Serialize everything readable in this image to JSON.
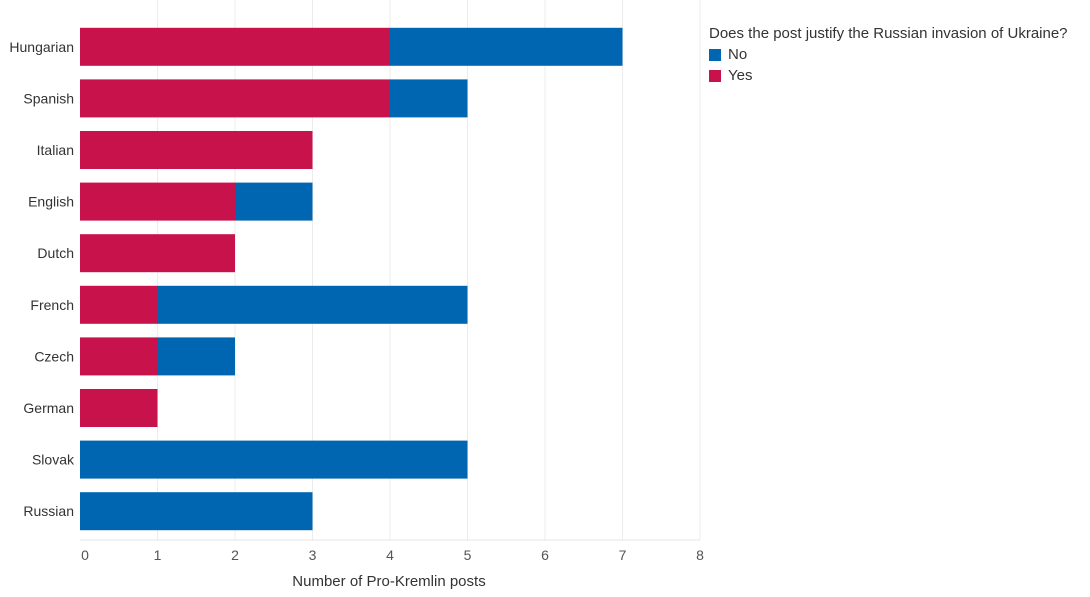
{
  "chart_data": {
    "type": "bar",
    "orientation": "horizontal",
    "stacked": true,
    "categories": [
      "Hungarian",
      "Spanish",
      "Italian",
      "English",
      "Dutch",
      "French",
      "Czech",
      "German",
      "Slovak",
      "Russian"
    ],
    "series": [
      {
        "name": "Yes",
        "color": "#C8124B",
        "values": [
          4,
          4,
          3,
          2,
          2,
          1,
          1,
          1,
          0,
          0
        ]
      },
      {
        "name": "No",
        "color": "#0066B2",
        "values": [
          3,
          1,
          0,
          1,
          0,
          4,
          1,
          0,
          5,
          3
        ]
      }
    ],
    "xlabel": "Number of Pro-Kremlin posts",
    "ylabel": "",
    "xlim": [
      0,
      8
    ],
    "xticks": [
      "0",
      "1",
      "2",
      "3",
      "4",
      "5",
      "6",
      "7",
      "8"
    ],
    "grid": true,
    "legend": {
      "title": "Does the post justify the Russian invasion of Ukraine?",
      "placement": "top-right",
      "entries": [
        "No",
        "Yes"
      ]
    }
  }
}
